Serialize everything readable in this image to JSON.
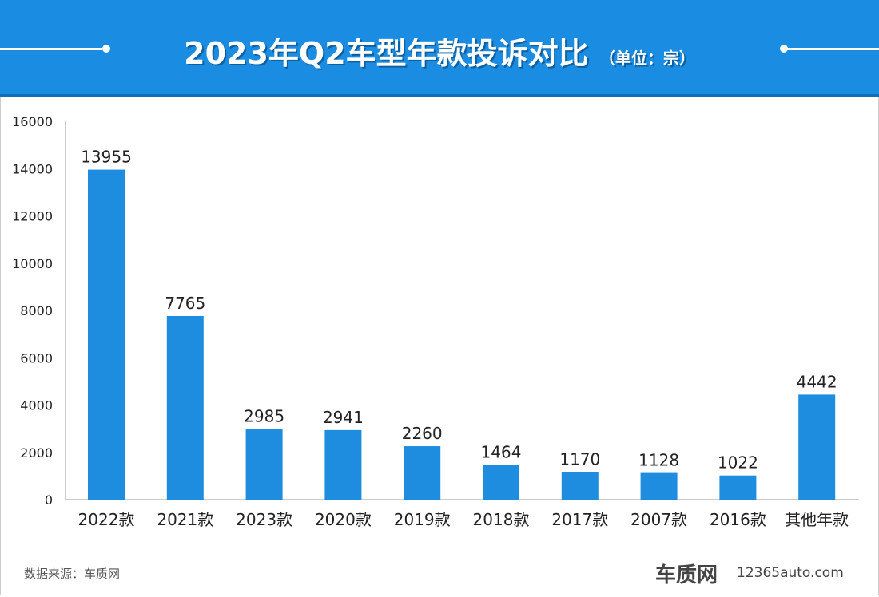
{
  "chart_data": {
    "type": "bar",
    "title": "2023年Q2车型年款投诉对比",
    "unit": "（单位：宗）",
    "categories": [
      "2022款",
      "2021款",
      "2023款",
      "2020款",
      "2019款",
      "2018款",
      "2017款",
      "2007款",
      "2016款",
      "其他年款"
    ],
    "values": [
      13955,
      7765,
      2985,
      2941,
      2260,
      1464,
      1170,
      1128,
      1022,
      4442
    ],
    "ylim": [
      0,
      16000
    ],
    "yticks": [
      0,
      2000,
      4000,
      6000,
      8000,
      10000,
      12000,
      14000,
      16000
    ],
    "xlabel": "",
    "ylabel": "",
    "grid": false,
    "bar_color": "#1e8de0"
  },
  "footer": {
    "source": "数据来源：车质网",
    "logo": "车质网",
    "site": "12365auto.com"
  }
}
